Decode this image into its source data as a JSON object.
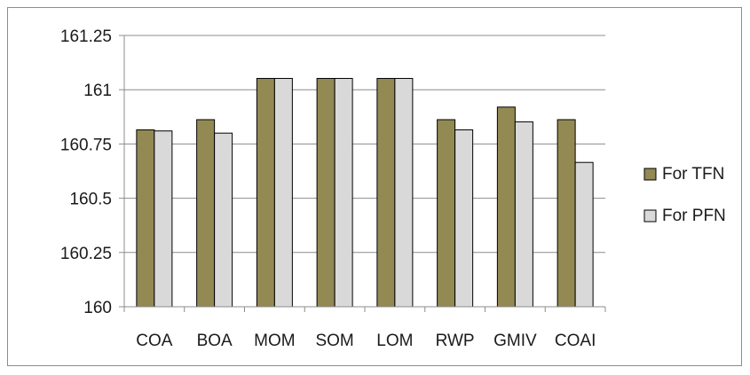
{
  "chart_data": {
    "type": "bar",
    "title": "",
    "xlabel": "",
    "ylabel": "",
    "categories": [
      "COA",
      "BOA",
      "MOM",
      "SOM",
      "LOM",
      "RWP",
      "GMIV",
      "COAI"
    ],
    "series": [
      {
        "name": "For TFN",
        "color": "#938953",
        "values": [
          160.815,
          160.862,
          161.052,
          161.052,
          161.052,
          160.862,
          160.92,
          160.862
        ]
      },
      {
        "name": "For PFN",
        "color": "#d9d9d9",
        "values": [
          160.81,
          160.8,
          161.052,
          161.052,
          161.052,
          160.815,
          160.852,
          160.665
        ]
      }
    ],
    "ylim": [
      160,
      161.25
    ],
    "yticks": [
      "161.25",
      "161",
      "160.75",
      "160.5",
      "160.25",
      "160"
    ],
    "ytick_values": [
      161.25,
      161,
      160.75,
      160.5,
      160.25,
      160
    ],
    "grid": true,
    "legend_position": "right"
  }
}
